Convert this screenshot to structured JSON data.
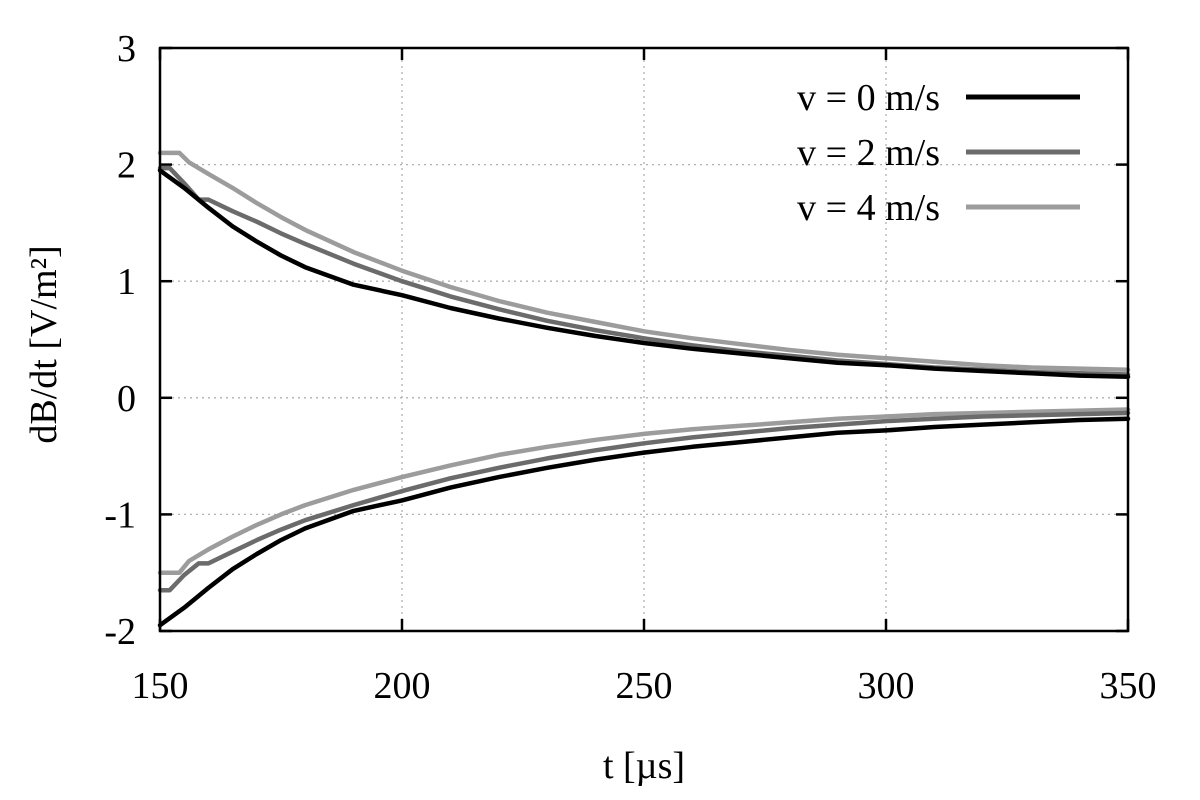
{
  "chart_data": {
    "type": "line",
    "title": "",
    "xlabel": "t [µs]",
    "ylabel": "dB/dt [V/m²]",
    "xlim": [
      150,
      350
    ],
    "ylim": [
      -2,
      3
    ],
    "xticks": [
      150,
      200,
      250,
      300,
      350
    ],
    "yticks": [
      -2,
      -1,
      0,
      1,
      2,
      3
    ],
    "xtick_labels": [
      "150",
      "200",
      "250",
      "300",
      "350"
    ],
    "ytick_labels": [
      "-2",
      "-1",
      "0",
      "1",
      "2",
      "3"
    ],
    "grid": true,
    "legend_position": "top-right",
    "legend": [
      "v = 0 m/s",
      "v = 2 m/s",
      "v = 4 m/s"
    ],
    "series": [
      {
        "name": "v = 0 m/s",
        "color": "#000000",
        "x": [
          150,
          155,
          160,
          165,
          170,
          175,
          180,
          190,
          200,
          210,
          220,
          230,
          240,
          250,
          260,
          270,
          280,
          290,
          300,
          310,
          320,
          330,
          340,
          350
        ],
        "upper": [
          1.95,
          1.8,
          1.63,
          1.47,
          1.34,
          1.22,
          1.12,
          0.97,
          0.88,
          0.77,
          0.68,
          0.6,
          0.53,
          0.47,
          0.42,
          0.38,
          0.34,
          0.3,
          0.28,
          0.25,
          0.23,
          0.21,
          0.19,
          0.18
        ],
        "lower": [
          -1.95,
          -1.8,
          -1.63,
          -1.47,
          -1.34,
          -1.22,
          -1.12,
          -0.97,
          -0.88,
          -0.77,
          -0.68,
          -0.6,
          -0.53,
          -0.47,
          -0.42,
          -0.38,
          -0.34,
          -0.3,
          -0.28,
          -0.25,
          -0.23,
          -0.21,
          -0.19,
          -0.18
        ]
      },
      {
        "name": "v = 2 m/s",
        "color": "#6b6b6b",
        "x": [
          150,
          152,
          155,
          158,
          160,
          165,
          170,
          175,
          180,
          190,
          200,
          210,
          220,
          230,
          240,
          250,
          260,
          270,
          280,
          290,
          300,
          310,
          320,
          330,
          340,
          350
        ],
        "upper": [
          1.97,
          1.97,
          1.84,
          1.7,
          1.7,
          1.6,
          1.51,
          1.41,
          1.32,
          1.15,
          1.0,
          0.87,
          0.76,
          0.66,
          0.58,
          0.51,
          0.45,
          0.4,
          0.36,
          0.32,
          0.29,
          0.26,
          0.24,
          0.22,
          0.21,
          0.2
        ],
        "lower": [
          -1.65,
          -1.65,
          -1.52,
          -1.42,
          -1.42,
          -1.32,
          -1.22,
          -1.13,
          -1.05,
          -0.92,
          -0.8,
          -0.69,
          -0.6,
          -0.52,
          -0.45,
          -0.39,
          -0.34,
          -0.3,
          -0.26,
          -0.23,
          -0.2,
          -0.18,
          -0.16,
          -0.15,
          -0.14,
          -0.13
        ]
      },
      {
        "name": "v = 4 m/s",
        "color": "#9c9c9c",
        "x": [
          150,
          154,
          156,
          160,
          165,
          170,
          175,
          180,
          190,
          200,
          210,
          220,
          230,
          240,
          250,
          260,
          270,
          280,
          290,
          300,
          310,
          320,
          330,
          340,
          350
        ],
        "upper": [
          2.1,
          2.1,
          2.02,
          1.92,
          1.8,
          1.67,
          1.55,
          1.44,
          1.25,
          1.09,
          0.95,
          0.83,
          0.73,
          0.65,
          0.57,
          0.51,
          0.46,
          0.41,
          0.37,
          0.34,
          0.31,
          0.28,
          0.26,
          0.25,
          0.24
        ],
        "lower": [
          -1.5,
          -1.5,
          -1.4,
          -1.3,
          -1.19,
          -1.09,
          -1.0,
          -0.92,
          -0.79,
          -0.68,
          -0.58,
          -0.49,
          -0.42,
          -0.36,
          -0.31,
          -0.27,
          -0.24,
          -0.21,
          -0.18,
          -0.16,
          -0.14,
          -0.13,
          -0.12,
          -0.11,
          -0.1
        ]
      }
    ]
  }
}
